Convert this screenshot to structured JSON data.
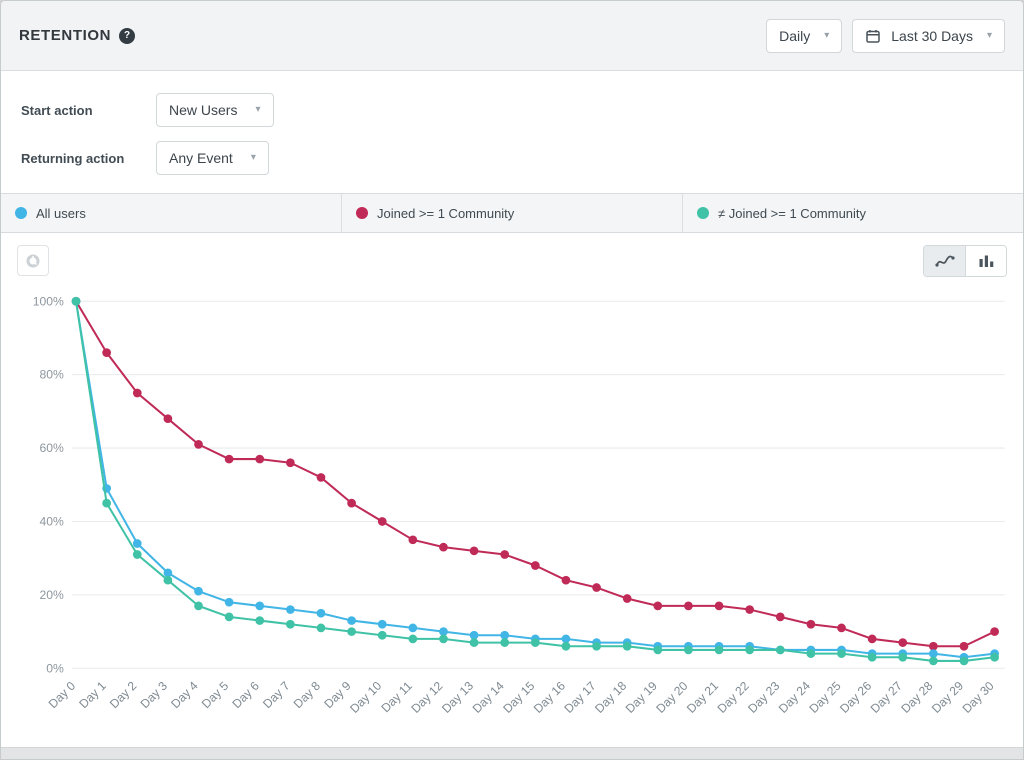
{
  "header": {
    "title": "RETENTION",
    "help_icon": "?",
    "granularity": "Daily",
    "date_range": "Last 30 Days"
  },
  "controls": {
    "start_action_label": "Start action",
    "start_action_value": "New Users",
    "returning_action_label": "Returning action",
    "returning_action_value": "Any Event"
  },
  "legend": {
    "items": [
      {
        "label": "All users",
        "color": "#41b5e6"
      },
      {
        "label": "Joined >= 1 Community",
        "color": "#c02a57"
      },
      {
        "label": "≠ Joined >= 1 Community",
        "color": "#3fc2a6"
      }
    ]
  },
  "chart_data": {
    "type": "line",
    "title": "",
    "xlabel": "",
    "ylabel": "",
    "ylim": [
      0,
      100
    ],
    "yticks": [
      "0%",
      "20%",
      "40%",
      "60%",
      "80%",
      "100%"
    ],
    "grid": true,
    "legend_position": "top-bar",
    "x": [
      "Day 0",
      "Day 1",
      "Day 2",
      "Day 3",
      "Day 4",
      "Day 5",
      "Day 6",
      "Day 7",
      "Day 8",
      "Day 9",
      "Day 10",
      "Day 11",
      "Day 12",
      "Day 13",
      "Day 14",
      "Day 15",
      "Day 16",
      "Day 17",
      "Day 18",
      "Day 19",
      "Day 20",
      "Day 21",
      "Day 22",
      "Day 23",
      "Day 24",
      "Day 25",
      "Day 26",
      "Day 27",
      "Day 28",
      "Day 29",
      "Day 30"
    ],
    "draw_order": [
      1,
      0,
      2
    ],
    "series": [
      {
        "name": "All users",
        "color": "#41b5e6",
        "values": [
          100,
          49,
          34,
          26,
          21,
          18,
          17,
          16,
          15,
          13,
          12,
          11,
          10,
          9,
          9,
          8,
          8,
          7,
          7,
          6,
          6,
          6,
          6,
          5,
          5,
          5,
          4,
          4,
          4,
          3,
          4
        ]
      },
      {
        "name": "Joined >= 1 Community",
        "color": "#c02a57",
        "values": [
          100,
          86,
          75,
          68,
          61,
          57,
          57,
          56,
          52,
          45,
          40,
          35,
          33,
          32,
          31,
          28,
          24,
          22,
          19,
          17,
          17,
          17,
          16,
          14,
          12,
          11,
          8,
          7,
          6,
          6,
          10
        ]
      },
      {
        "name": "≠ Joined >= 1 Community",
        "color": "#3fc2a6",
        "values": [
          100,
          45,
          31,
          24,
          17,
          14,
          13,
          12,
          11,
          10,
          9,
          8,
          8,
          7,
          7,
          7,
          6,
          6,
          6,
          5,
          5,
          5,
          5,
          5,
          4,
          4,
          3,
          3,
          2,
          2,
          3
        ]
      }
    ]
  }
}
